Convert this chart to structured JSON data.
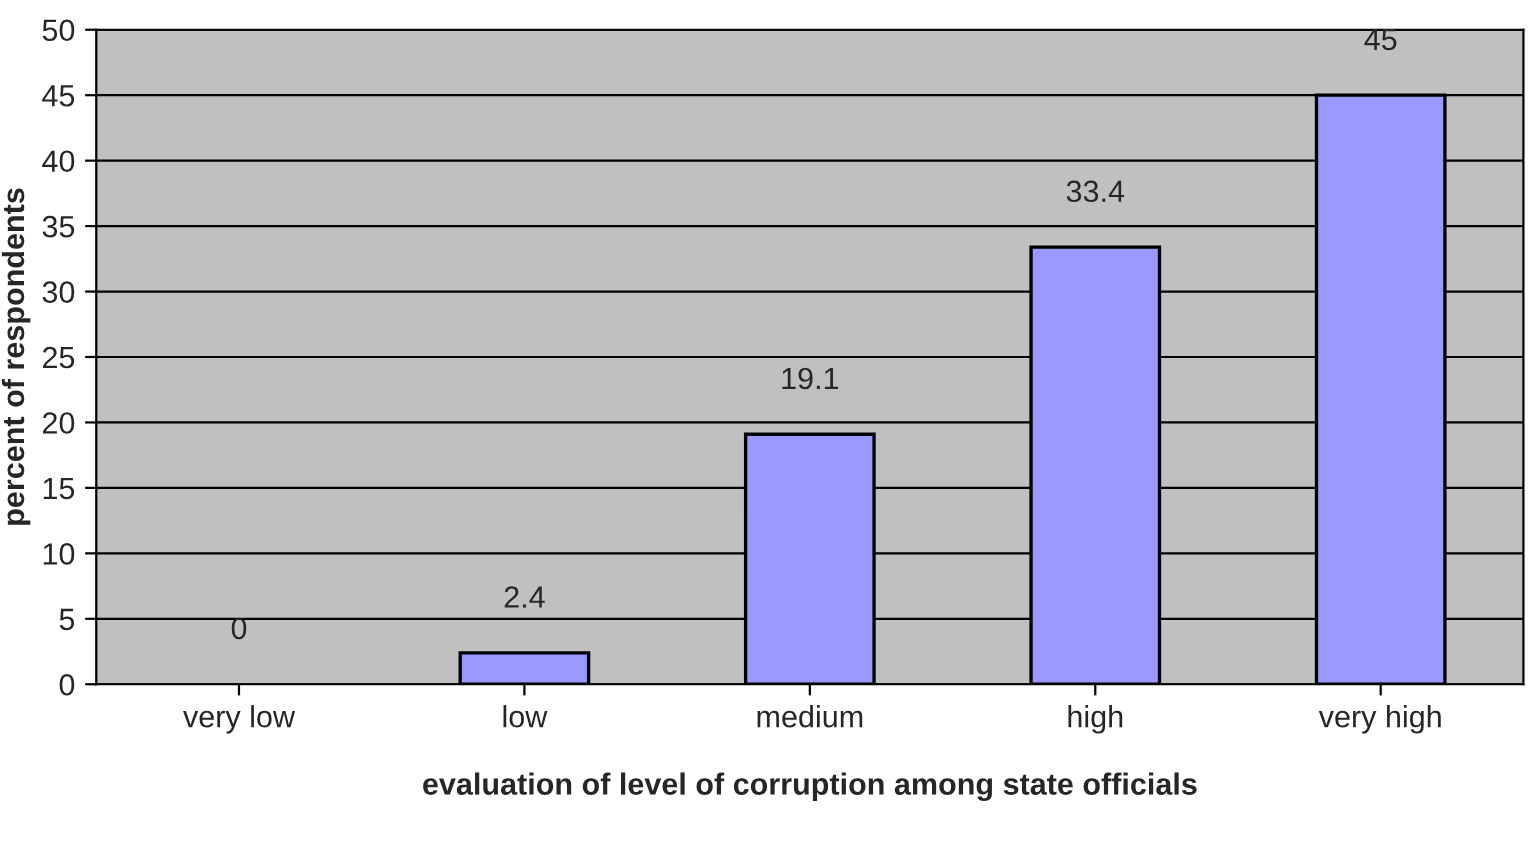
{
  "chart_data": {
    "type": "bar",
    "xlabel": "evaluation of level of corruption among state officials",
    "ylabel": "percent of respondents",
    "categories": [
      "very low",
      "low",
      "medium",
      "high",
      "very high"
    ],
    "values": [
      0,
      2.4,
      19.1,
      33.4,
      45
    ],
    "color": "#9999ff",
    "ylim": [
      0,
      50
    ],
    "yticks": [
      0,
      5,
      10,
      15,
      20,
      25,
      30,
      35,
      40,
      45,
      50
    ],
    "grid": "y",
    "data_labels": true
  }
}
